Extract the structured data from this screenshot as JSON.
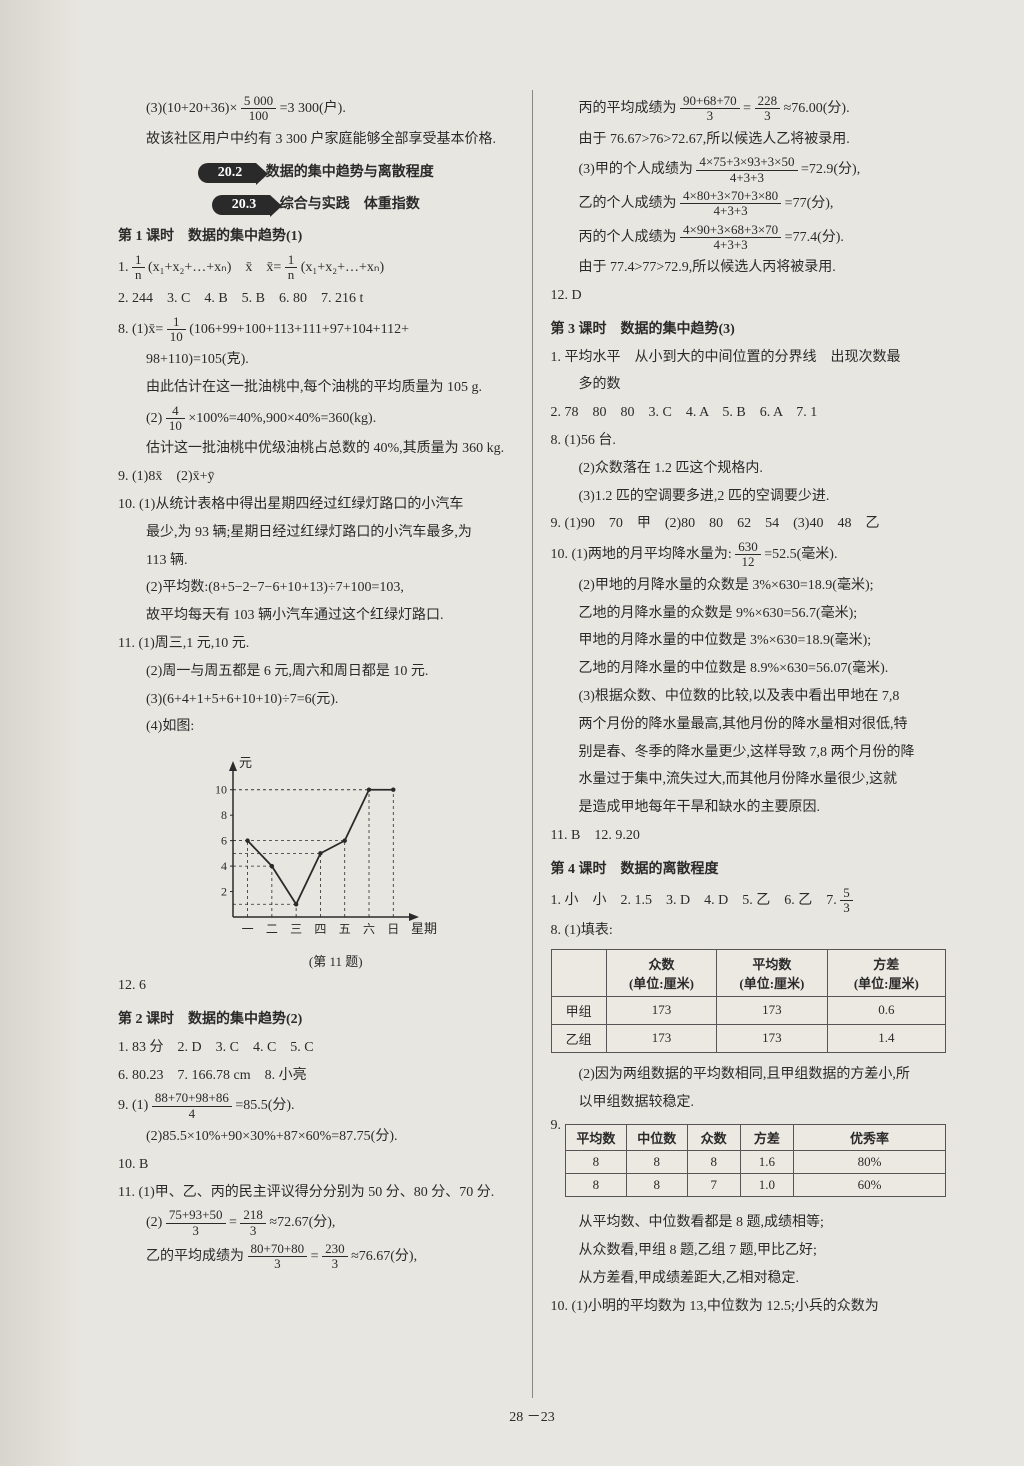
{
  "left": {
    "l1": "(3)(10+20+36)×",
    "l1b": "=3 300(户).",
    "frac_l1": {
      "n": "5 000",
      "d": "100"
    },
    "l2": "故该社区用户中约有 3 300 户家庭能够全部享受基本价格.",
    "sec1_num": "20.2",
    "sec1_title": "数据的集中趋势与离散程度",
    "sec2_num": "20.3",
    "sec2_title": "综合与实践　体重指数",
    "lesson1": "第 1 课时　数据的集中趋势(1)",
    "q1a": "1. ",
    "q1_frac1": {
      "n": "1",
      "d": "n"
    },
    "q1b": "(x₁+x₂+…+xₙ)　x̄　x̄=",
    "q1_frac2": {
      "n": "1",
      "d": "n"
    },
    "q1c": "(x₁+x₂+…+xₙ)",
    "q2": "2. 244　3. C　4. B　5. B　6. 80　7. 216 t",
    "q8a": "8. (1)x̄=",
    "q8_frac": {
      "n": "1",
      "d": "10"
    },
    "q8b": "(106+99+100+113+111+97+104+112+",
    "q8c": "98+110)=105(克).",
    "q8d": "由此估计在这一批油桃中,每个油桃的平均质量为 105 g.",
    "q8e": "(2)",
    "q8_frac2": {
      "n": "4",
      "d": "10"
    },
    "q8f": "×100%=40%,900×40%=360(kg).",
    "q8g": "估计这一批油桃中优级油桃占总数的 40%,其质量为 360 kg.",
    "q9": "9. (1)8x̄　(2)x̄+ȳ",
    "q10a": "10. (1)从统计表格中得出星期四经过红绿灯路口的小汽车",
    "q10b": "最少,为 93 辆;星期日经过红绿灯路口的小汽车最多,为",
    "q10c": "113 辆.",
    "q10d": "(2)平均数:(8+5−2−7−6+10+13)÷7+100=103,",
    "q10e": "故平均每天有 103 辆小汽车通过这个红绿灯路口.",
    "q11a": "11. (1)周三,1 元,10 元.",
    "q11b": "(2)周一与周五都是 6 元,周六和周日都是 10 元.",
    "q11c": "(3)(6+4+1+5+6+10+10)÷7=6(元).",
    "q11d": "(4)如图:",
    "chart": {
      "y_label": "元",
      "x_label": "星期",
      "x_ticks": [
        "一",
        "二",
        "三",
        "四",
        "五",
        "六",
        "日"
      ],
      "y_ticks": [
        2,
        4,
        6,
        8,
        10
      ],
      "points_y": [
        6,
        4,
        1,
        5,
        6,
        10,
        10
      ],
      "axis_color": "#2a2a2a",
      "dash_color": "#2a2a2a",
      "line_color": "#2a2a2a"
    },
    "chart_caption": "(第 11 题)",
    "q12": "12. 6",
    "lesson2": "第 2 课时　数据的集中趋势(2)",
    "l2_1": "1. 83 分　2. D　3. C　4. C　5. C",
    "l2_6": "6. 80.23　7. 166.78 cm　8. 小亮",
    "l2_9a": "9. (1)",
    "l2_9frac": {
      "n": "88+70+98+86",
      "d": "4"
    },
    "l2_9b": "=85.5(分).",
    "l2_9c": "(2)85.5×10%+90×30%+87×60%=87.75(分).",
    "l2_10": "10. B",
    "l2_11a": "11. (1)甲、乙、丙的民主评议得分分别为 50 分、80 分、70 分.",
    "l2_11b": "(2)",
    "l2_11frac1": {
      "n": "75+93+50",
      "d": "3"
    },
    "l2_11c": "=",
    "l2_11frac2": {
      "n": "218",
      "d": "3"
    },
    "l2_11d": "≈72.67(分),",
    "l2_11e": "乙的平均成绩为",
    "l2_11frac3": {
      "n": "80+70+80",
      "d": "3"
    },
    "l2_11f": "=",
    "l2_11frac4": {
      "n": "230",
      "d": "3"
    },
    "l2_11g": "≈76.67(分),"
  },
  "right": {
    "r1a": "丙的平均成绩为",
    "r1frac1": {
      "n": "90+68+70",
      "d": "3"
    },
    "r1b": "=",
    "r1frac2": {
      "n": "228",
      "d": "3"
    },
    "r1c": "≈76.00(分).",
    "r2": "由于 76.67>76>72.67,所以候选人乙将被录用.",
    "r3a": "(3)甲的个人成绩为",
    "r3frac": {
      "n": "4×75+3×93+3×50",
      "d": "4+3+3"
    },
    "r3b": "=72.9(分),",
    "r4a": "乙的个人成绩为",
    "r4frac": {
      "n": "4×80+3×70+3×80",
      "d": "4+3+3"
    },
    "r4b": "=77(分),",
    "r5a": "丙的个人成绩为",
    "r5frac": {
      "n": "4×90+3×68+3×70",
      "d": "4+3+3"
    },
    "r5b": "=77.4(分).",
    "r6": "由于 77.4>77>72.9,所以候选人丙将被录用.",
    "r12": "12. D",
    "lesson3": "第 3 课时　数据的集中趋势(3)",
    "l3_1a": "1. 平均水平　从小到大的中间位置的分界线　出现次数最",
    "l3_1b": "多的数",
    "l3_2": "2. 78　80　80　3. C　4. A　5. B　6. A　7. 1",
    "l3_8a": "8. (1)56 台.",
    "l3_8b": "(2)众数落在 1.2 匹这个规格内.",
    "l3_8c": "(3)1.2 匹的空调要多进,2 匹的空调要少进.",
    "l3_9": "9. (1)90　70　甲　(2)80　80　62　54　(3)40　48　乙",
    "l3_10a": "10. (1)两地的月平均降水量为:",
    "l3_10frac": {
      "n": "630",
      "d": "12"
    },
    "l3_10b": "=52.5(毫米).",
    "l3_10c": "(2)甲地的月降水量的众数是 3%×630=18.9(毫米);",
    "l3_10d": "乙地的月降水量的众数是 9%×630=56.7(毫米);",
    "l3_10e": "甲地的月降水量的中位数是 3%×630=18.9(毫米);",
    "l3_10f": "乙地的月降水量的中位数是 8.9%×630=56.07(毫米).",
    "l3_10g": "(3)根据众数、中位数的比较,以及表中看出甲地在 7,8",
    "l3_10h": "两个月份的降水量最高,其他月份的降水量相对很低,特",
    "l3_10i": "别是春、冬季的降水量更少,这样导致 7,8 两个月份的降",
    "l3_10j": "水量过于集中,流失过大,而其他月份降水量很少,这就",
    "l3_10k": "是造成甲地每年干旱和缺水的主要原因.",
    "l3_11": "11. B　12. 9.20",
    "lesson4": "第 4 课时　数据的离散程度",
    "l4_1a": "1. 小　小　2. 1.5　3. D　4. D　5. 乙　6. 乙　7. ",
    "l4_1frac": {
      "n": "5",
      "d": "3"
    },
    "l4_8a": "8. (1)填表:",
    "tbl1": {
      "headers": [
        "",
        "众数\n(单位:厘米)",
        "平均数\n(单位:厘米)",
        "方差\n(单位:厘米)"
      ],
      "rows": [
        [
          "甲组",
          "173",
          "173",
          "0.6"
        ],
        [
          "乙组",
          "173",
          "173",
          "1.4"
        ]
      ],
      "col_widths": [
        "14%",
        "28%",
        "28%",
        "30%"
      ]
    },
    "l4_8b": "(2)因为两组数据的平均数相同,且甲组数据的方差小,所",
    "l4_8c": "以甲组数据较稳定.",
    "tbl2": {
      "headers": [
        "平均数",
        "中位数",
        "众数",
        "方差",
        "优秀率"
      ],
      "rows": [
        [
          "8",
          "8",
          "8",
          "1.6",
          "80%"
        ],
        [
          "8",
          "8",
          "7",
          "1.0",
          "60%"
        ]
      ],
      "col_widths": [
        "16%",
        "16%",
        "14%",
        "14%",
        "40%"
      ]
    },
    "l4_9": "9.",
    "l4_post1": "从平均数、中位数看都是 8 题,成绩相等;",
    "l4_post2": "从众数看,甲组 8 题,乙组 7 题,甲比乙好;",
    "l4_post3": "从方差看,甲成绩差距大,乙相对稳定.",
    "l4_10": "10. (1)小明的平均数为 13,中位数为 12.5;小兵的众数为"
  },
  "footer": "28 －23"
}
